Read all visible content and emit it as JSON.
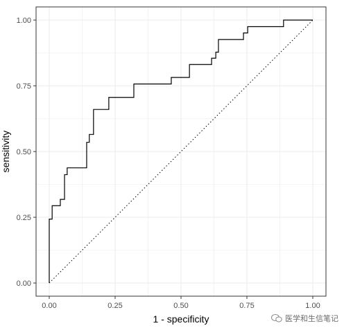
{
  "chart_data": {
    "type": "line",
    "title": "",
    "xlabel": "1 - specificity",
    "ylabel": "sensitivity",
    "xlim": [
      -0.05,
      1.05
    ],
    "ylim": [
      -0.05,
      1.05
    ],
    "x_ticks": [
      0,
      0.25,
      0.5,
      0.75,
      1
    ],
    "x_tick_labels": [
      "0.00",
      "0.25",
      "0.50",
      "0.75",
      "1.00"
    ],
    "y_ticks": [
      0,
      0.25,
      0.5,
      0.75,
      1
    ],
    "y_tick_labels": [
      "0.00",
      "0.25",
      "0.50",
      "0.75",
      "1.00"
    ],
    "grid": true,
    "reference_line": {
      "x": [
        0,
        1
      ],
      "y": [
        0,
        1
      ],
      "style": "dotted"
    },
    "series": [
      {
        "x": [
          0.0,
          0.0,
          0.011,
          0.011,
          0.042,
          0.042,
          0.058,
          0.058,
          0.068,
          0.068,
          0.142,
          0.142,
          0.152,
          0.152,
          0.168,
          0.168,
          0.226,
          0.226,
          0.321,
          0.321,
          0.463,
          0.463,
          0.532,
          0.532,
          0.616,
          0.616,
          0.632,
          0.632,
          0.642,
          0.642,
          0.737,
          0.737,
          0.753,
          0.753,
          0.889,
          0.889,
          1.0
        ],
        "y": [
          0.0,
          0.243,
          0.243,
          0.294,
          0.294,
          0.318,
          0.318,
          0.412,
          0.412,
          0.438,
          0.438,
          0.535,
          0.535,
          0.565,
          0.565,
          0.66,
          0.66,
          0.706,
          0.706,
          0.757,
          0.757,
          0.782,
          0.782,
          0.831,
          0.831,
          0.855,
          0.855,
          0.878,
          0.878,
          0.926,
          0.926,
          0.951,
          0.951,
          0.975,
          0.975,
          1.0,
          1.0
        ]
      }
    ],
    "colors": {
      "line": "#000000",
      "grid": "#ebebeb",
      "axis_border": "#333333",
      "tick_text": "#4d4d4d"
    }
  },
  "watermark": {
    "text": "医学和生信笔记",
    "icon": "wechat-icon"
  }
}
